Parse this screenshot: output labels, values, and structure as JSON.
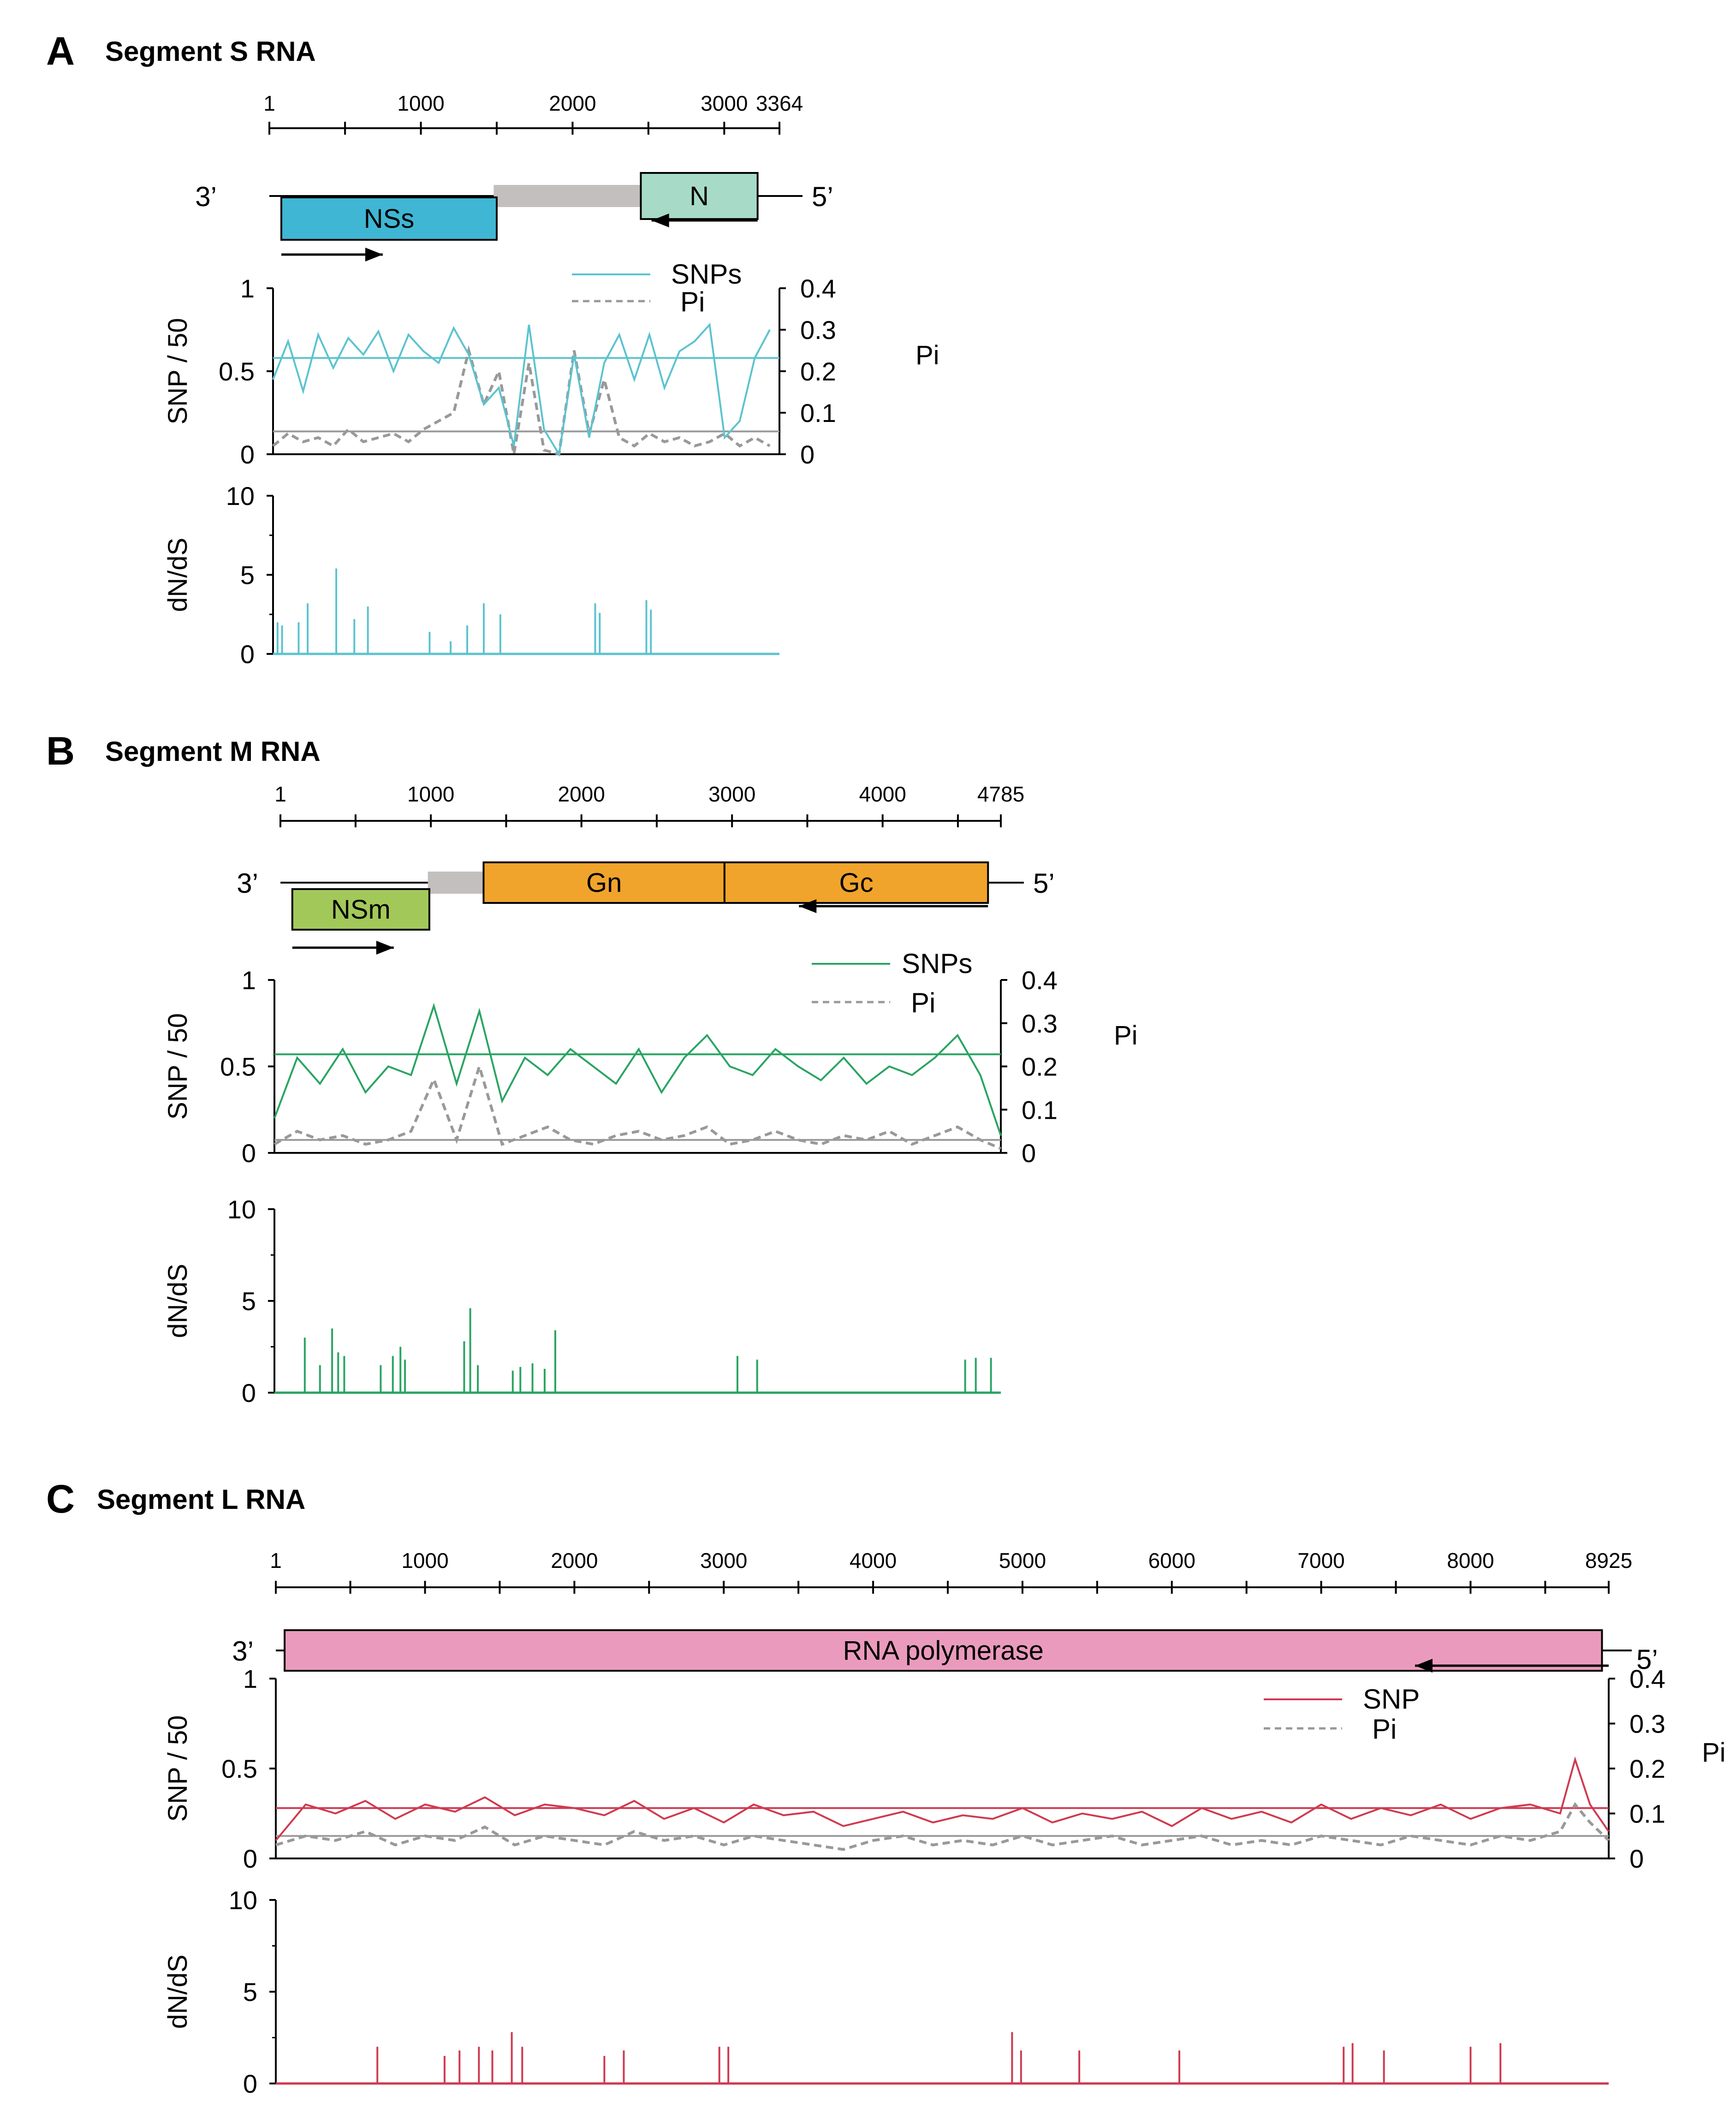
{
  "chart_data": [
    {
      "type": "line",
      "panel": "A",
      "title": "Segment S RNA",
      "genome_length": 3364,
      "ruler_ticks": [
        1,
        1000,
        2000,
        3000,
        3364
      ],
      "end_labels": {
        "left": "3’",
        "right": "5’"
      },
      "genes": [
        {
          "name": "NSs",
          "start": 80,
          "end": 1500,
          "row": "below",
          "color": "#3fb6d3",
          "direction": "forward"
        },
        {
          "name": "N",
          "start": 2450,
          "end": 3220,
          "row": "genome",
          "color": "#a7dbc8",
          "direction": "reverse"
        }
      ],
      "noncoding_bars": [
        {
          "start": 1480,
          "end": 2450
        }
      ],
      "series_color": "#5cc3cf",
      "snp_axis": {
        "ylabel": "SNP / 50",
        "ylim": [
          0,
          1
        ],
        "ticks": [
          "1",
          "0.5",
          "0"
        ]
      },
      "pi_axis": {
        "ylabel": "Pi",
        "ylim": [
          0,
          0.4
        ],
        "ticks": [
          "0.4",
          "0.3",
          "0.2",
          "0.1",
          "0"
        ]
      },
      "legend": {
        "snp": "SNPs",
        "pi": "Pi"
      },
      "snp_mean": 0.58,
      "pi_mean": 0.055,
      "snp_x": [
        0,
        100,
        200,
        300,
        400,
        500,
        600,
        700,
        800,
        900,
        1000,
        1100,
        1200,
        1300,
        1400,
        1500,
        1600,
        1700,
        1800,
        1900,
        2000,
        2100,
        2200,
        2300,
        2400,
        2500,
        2600,
        2700,
        2800,
        2900,
        3000,
        3100,
        3200,
        3300
      ],
      "snp_y": [
        0.45,
        0.68,
        0.38,
        0.72,
        0.52,
        0.7,
        0.6,
        0.74,
        0.5,
        0.72,
        0.62,
        0.55,
        0.76,
        0.6,
        0.3,
        0.4,
        0.05,
        0.78,
        0.15,
        0.0,
        0.6,
        0.1,
        0.55,
        0.72,
        0.45,
        0.72,
        0.4,
        0.62,
        0.68,
        0.78,
        0.1,
        0.2,
        0.58,
        0.75
      ],
      "pi_x": [
        0,
        100,
        200,
        300,
        400,
        500,
        600,
        700,
        800,
        900,
        1000,
        1100,
        1200,
        1300,
        1400,
        1500,
        1600,
        1700,
        1800,
        1900,
        2000,
        2100,
        2200,
        2300,
        2400,
        2500,
        2600,
        2700,
        2800,
        2900,
        3000,
        3100,
        3200,
        3300
      ],
      "pi_y": [
        0.02,
        0.05,
        0.03,
        0.04,
        0.02,
        0.06,
        0.03,
        0.04,
        0.05,
        0.03,
        0.06,
        0.08,
        0.1,
        0.25,
        0.12,
        0.2,
        0.0,
        0.22,
        0.01,
        0.0,
        0.25,
        0.05,
        0.18,
        0.04,
        0.02,
        0.05,
        0.03,
        0.04,
        0.02,
        0.03,
        0.05,
        0.02,
        0.04,
        0.02
      ],
      "dnds_axis": {
        "ylabel": "dN/dS",
        "ylim": [
          0,
          10
        ],
        "ticks": [
          "10",
          "5",
          "0"
        ]
      },
      "dnds_x": [
        30,
        60,
        170,
        230,
        420,
        540,
        630,
        1040,
        1180,
        1290,
        1400,
        1510,
        2140,
        2170,
        2480,
        2510
      ],
      "dnds_y": [
        2.0,
        1.8,
        2.0,
        3.2,
        5.4,
        2.2,
        3.0,
        1.4,
        0.8,
        1.8,
        3.2,
        2.5,
        3.2,
        2.6,
        3.4,
        2.8
      ]
    },
    {
      "type": "line",
      "panel": "B",
      "title": "Segment M RNA",
      "genome_length": 4785,
      "ruler_ticks": [
        1,
        1000,
        2000,
        3000,
        4000,
        4785
      ],
      "end_labels": {
        "left": "3’",
        "right": "5’"
      },
      "genes": [
        {
          "name": "NSm",
          "start": 80,
          "end": 990,
          "row": "below",
          "color": "#a3c85a",
          "direction": "forward"
        },
        {
          "name": "Gn",
          "start": 1350,
          "end": 2950,
          "row": "genome",
          "color": "#f0a42c",
          "direction": "reverse"
        },
        {
          "name": "Gc",
          "start": 2950,
          "end": 4700,
          "row": "genome",
          "color": "#f0a42c",
          "direction": "reverse"
        }
      ],
      "noncoding_bars": [
        {
          "start": 980,
          "end": 1350
        }
      ],
      "series_color": "#2aa462",
      "snp_axis": {
        "ylabel": "SNP / 50",
        "ylim": [
          0,
          1
        ],
        "ticks": [
          "1",
          "0.5",
          "0"
        ]
      },
      "pi_axis": {
        "ylabel": "Pi",
        "ylim": [
          0,
          0.4
        ],
        "ticks": [
          "0.4",
          "0.3",
          "0.2",
          "0.1",
          "0"
        ]
      },
      "legend": {
        "snp": "SNPs",
        "pi": "Pi"
      },
      "snp_mean": 0.57,
      "pi_mean": 0.03,
      "snp_x": [
        0,
        150,
        300,
        450,
        600,
        750,
        900,
        1050,
        1200,
        1350,
        1500,
        1650,
        1800,
        1950,
        2100,
        2250,
        2400,
        2550,
        2700,
        2850,
        3000,
        3150,
        3300,
        3450,
        3600,
        3750,
        3900,
        4050,
        4200,
        4350,
        4500,
        4650,
        4785
      ],
      "snp_y": [
        0.2,
        0.55,
        0.4,
        0.6,
        0.35,
        0.5,
        0.45,
        0.85,
        0.4,
        0.82,
        0.3,
        0.55,
        0.45,
        0.6,
        0.5,
        0.4,
        0.6,
        0.35,
        0.55,
        0.68,
        0.5,
        0.45,
        0.6,
        0.5,
        0.42,
        0.55,
        0.4,
        0.5,
        0.45,
        0.55,
        0.68,
        0.45,
        0.1
      ],
      "pi_x": [
        0,
        150,
        300,
        450,
        600,
        750,
        900,
        1050,
        1200,
        1350,
        1500,
        1650,
        1800,
        1950,
        2100,
        2250,
        2400,
        2550,
        2700,
        2850,
        3000,
        3150,
        3300,
        3450,
        3600,
        3750,
        3900,
        4050,
        4200,
        4350,
        4500,
        4650,
        4785
      ],
      "pi_y": [
        0.02,
        0.05,
        0.03,
        0.04,
        0.02,
        0.03,
        0.05,
        0.17,
        0.03,
        0.2,
        0.02,
        0.04,
        0.06,
        0.03,
        0.02,
        0.04,
        0.05,
        0.03,
        0.04,
        0.06,
        0.02,
        0.03,
        0.05,
        0.03,
        0.02,
        0.04,
        0.03,
        0.05,
        0.02,
        0.04,
        0.06,
        0.03,
        0.01
      ],
      "dnds_axis": {
        "ylabel": "dN/dS",
        "ylim": [
          0,
          10
        ],
        "ticks": [
          "10",
          "5",
          "0"
        ]
      },
      "dnds_x": [
        200,
        300,
        380,
        420,
        460,
        700,
        780,
        830,
        860,
        1250,
        1290,
        1340,
        1570,
        1620,
        1700,
        1780,
        1850,
        3050,
        3180,
        4550,
        4620,
        4720
      ],
      "dnds_y": [
        3.0,
        1.5,
        3.5,
        2.2,
        2.0,
        1.5,
        2.0,
        2.5,
        1.8,
        2.8,
        4.6,
        1.5,
        1.2,
        1.4,
        1.6,
        1.3,
        3.4,
        2.0,
        1.8,
        1.8,
        1.9,
        1.9
      ]
    },
    {
      "type": "line",
      "panel": "C",
      "title": "Segment L RNA",
      "genome_length": 8925,
      "ruler_ticks": [
        1,
        1000,
        2000,
        3000,
        4000,
        5000,
        6000,
        7000,
        8000,
        8925
      ],
      "end_labels": {
        "left": "3’",
        "right": "5’"
      },
      "genes": [
        {
          "name": "RNA polymerase",
          "start": 60,
          "end": 8880,
          "row": "genome",
          "color": "#ea9bbd",
          "direction": "reverse"
        }
      ],
      "noncoding_bars": [],
      "series_color": "#cf3a50",
      "snp_axis": {
        "ylabel": "SNP / 50",
        "ylim": [
          0,
          1
        ],
        "ticks": [
          "1",
          "0.5",
          "0"
        ]
      },
      "pi_axis": {
        "ylabel": "Pi",
        "ylim": [
          0,
          0.4
        ],
        "ticks": [
          "0.4",
          "0.3",
          "0.2",
          "0.1",
          "0"
        ]
      },
      "legend": {
        "snp": "SNP",
        "pi": "Pi"
      },
      "snp_mean": 0.28,
      "pi_mean": 0.05,
      "snp_x": [
        0,
        200,
        400,
        600,
        800,
        1000,
        1200,
        1400,
        1600,
        1800,
        2000,
        2200,
        2400,
        2600,
        2800,
        3000,
        3200,
        3400,
        3600,
        3800,
        4000,
        4200,
        4400,
        4600,
        4800,
        5000,
        5200,
        5400,
        5600,
        5800,
        6000,
        6200,
        6400,
        6600,
        6800,
        7000,
        7200,
        7400,
        7600,
        7800,
        8000,
        8200,
        8400,
        8600,
        8700,
        8800,
        8925
      ],
      "snp_y": [
        0.1,
        0.3,
        0.25,
        0.32,
        0.22,
        0.3,
        0.26,
        0.34,
        0.24,
        0.3,
        0.28,
        0.24,
        0.32,
        0.22,
        0.28,
        0.2,
        0.3,
        0.24,
        0.26,
        0.18,
        0.22,
        0.26,
        0.2,
        0.24,
        0.22,
        0.28,
        0.2,
        0.25,
        0.22,
        0.26,
        0.18,
        0.28,
        0.22,
        0.26,
        0.2,
        0.3,
        0.22,
        0.28,
        0.24,
        0.3,
        0.22,
        0.28,
        0.3,
        0.25,
        0.55,
        0.3,
        0.15
      ],
      "pi_x": [
        0,
        200,
        400,
        600,
        800,
        1000,
        1200,
        1400,
        1600,
        1800,
        2000,
        2200,
        2400,
        2600,
        2800,
        3000,
        3200,
        3400,
        3600,
        3800,
        4000,
        4200,
        4400,
        4600,
        4800,
        5000,
        5200,
        5400,
        5600,
        5800,
        6000,
        6200,
        6400,
        6600,
        6800,
        7000,
        7200,
        7400,
        7600,
        7800,
        8000,
        8200,
        8400,
        8600,
        8700,
        8800,
        8925
      ],
      "pi_y": [
        0.03,
        0.05,
        0.04,
        0.06,
        0.03,
        0.05,
        0.04,
        0.07,
        0.03,
        0.05,
        0.04,
        0.03,
        0.06,
        0.04,
        0.05,
        0.03,
        0.05,
        0.04,
        0.03,
        0.02,
        0.04,
        0.05,
        0.03,
        0.04,
        0.03,
        0.05,
        0.03,
        0.04,
        0.05,
        0.03,
        0.04,
        0.05,
        0.03,
        0.04,
        0.03,
        0.05,
        0.04,
        0.03,
        0.05,
        0.04,
        0.03,
        0.05,
        0.04,
        0.06,
        0.12,
        0.08,
        0.04
      ],
      "dnds_axis": {
        "ylabel": "dN/dS",
        "ylim": [
          0,
          10
        ],
        "ticks": [
          "10",
          "5",
          "0"
        ]
      },
      "dnds_x": [
        680,
        1130,
        1230,
        1360,
        1450,
        1580,
        1650,
        2200,
        2330,
        2970,
        3030,
        4930,
        4990,
        5380,
        6050,
        7150,
        7210,
        7420,
        8000,
        8200
      ],
      "dnds_y": [
        2.0,
        1.5,
        1.8,
        2.0,
        1.8,
        2.8,
        2.0,
        1.5,
        1.8,
        2.0,
        2.0,
        2.8,
        1.8,
        1.8,
        1.8,
        2.0,
        2.2,
        1.8,
        2.0,
        2.2
      ]
    }
  ]
}
